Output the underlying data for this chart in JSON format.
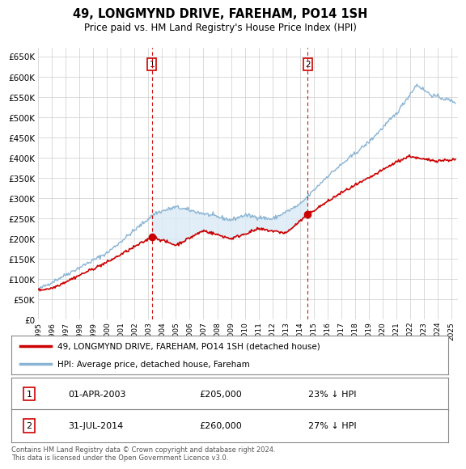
{
  "title": "49, LONGMYND DRIVE, FAREHAM, PO14 1SH",
  "subtitle": "Price paid vs. HM Land Registry's House Price Index (HPI)",
  "ylim": [
    0,
    670000
  ],
  "yticks": [
    0,
    50000,
    100000,
    150000,
    200000,
    250000,
    300000,
    350000,
    400000,
    450000,
    500000,
    550000,
    600000,
    650000
  ],
  "xlim_start": 1995.0,
  "xlim_end": 2025.5,
  "hpi_color": "#8ab4d4",
  "hpi_fill_color": "#daeaf5",
  "price_color": "#cc0000",
  "vline_color": "#cc0000",
  "sale1_year": 2003.25,
  "sale1_price": 205000,
  "sale1_label": "1",
  "sale2_year": 2014.58,
  "sale2_price": 260000,
  "sale2_label": "2",
  "legend_line1": "49, LONGMYND DRIVE, FAREHAM, PO14 1SH (detached house)",
  "legend_line2": "HPI: Average price, detached house, Fareham",
  "table_row1": [
    "1",
    "01-APR-2003",
    "£205,000",
    "23% ↓ HPI"
  ],
  "table_row2": [
    "2",
    "31-JUL-2014",
    "£260,000",
    "27% ↓ HPI"
  ],
  "footnote": "Contains HM Land Registry data © Crown copyright and database right 2024.\nThis data is licensed under the Open Government Licence v3.0.",
  "bg_color": "#ffffff",
  "grid_color": "#cccccc"
}
